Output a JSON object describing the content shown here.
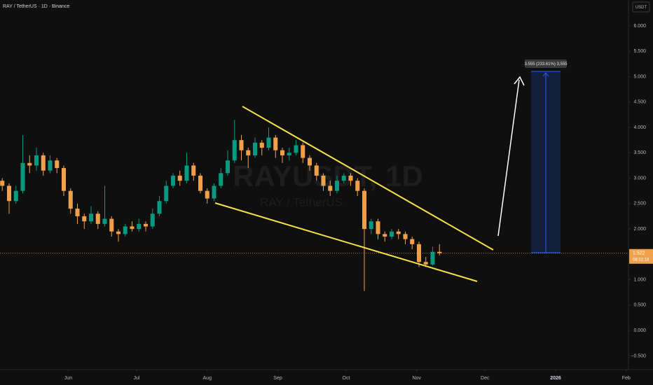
{
  "header": {
    "symbol": "RAY / TetherUS · 1D · Binance",
    "currency": "USDT"
  },
  "chart_data": {
    "type": "candlestick",
    "watermark": "RAYUSDT, 1D",
    "watermark_subtitle": "RAY / TetherUS",
    "up_color": "#089981",
    "down_color": "#f0a04b",
    "grid": false,
    "x": [
      -29,
      -26,
      -23,
      -20,
      -17,
      -14,
      -11,
      -8,
      -5,
      -2,
      1,
      4,
      7,
      10,
      13,
      16,
      19,
      22,
      25,
      28,
      31,
      34,
      37,
      40,
      43,
      46,
      49,
      52,
      55,
      58,
      61,
      64,
      67,
      70,
      73,
      76,
      79,
      82,
      85,
      88,
      91,
      94,
      97,
      100,
      103,
      106,
      109,
      112,
      115,
      118,
      121,
      124,
      127,
      130,
      133,
      136,
      139,
      142,
      145,
      148,
      151,
      154,
      157,
      160,
      163
    ],
    "open": [
      2.95,
      2.85,
      2.55,
      2.75,
      3.3,
      3.25,
      3.45,
      3.15,
      3.35,
      3.2,
      2.75,
      2.4,
      2.25,
      2.15,
      2.3,
      2.1,
      2.2,
      1.95,
      1.9,
      2.05,
      2.0,
      2.1,
      2.05,
      2.3,
      2.55,
      2.85,
      3.05,
      2.95,
      3.25,
      3.05,
      2.75,
      2.6,
      2.85,
      3.1,
      3.35,
      3.75,
      3.55,
      3.45,
      3.7,
      3.6,
      3.8,
      3.55,
      3.45,
      3.5,
      3.65,
      3.4,
      3.25,
      3.05,
      2.85,
      2.75,
      2.95,
      3.05,
      2.95,
      2.75,
      2.0,
      2.15,
      1.9,
      1.85,
      1.95,
      1.9,
      1.8,
      1.7,
      1.35,
      1.3,
      1.55
    ],
    "high": [
      3.0,
      2.9,
      2.85,
      3.85,
      3.45,
      3.6,
      3.5,
      3.45,
      3.4,
      3.25,
      2.8,
      2.5,
      2.3,
      2.45,
      2.35,
      2.85,
      2.25,
      2.0,
      2.1,
      2.15,
      2.2,
      2.15,
      2.4,
      2.65,
      2.95,
      3.1,
      3.15,
      3.5,
      3.3,
      3.1,
      2.8,
      2.9,
      3.2,
      3.55,
      4.15,
      3.85,
      3.6,
      3.8,
      3.75,
      4.0,
      3.85,
      3.6,
      3.6,
      3.75,
      3.7,
      3.45,
      3.3,
      3.1,
      2.95,
      3.05,
      3.1,
      3.1,
      3.0,
      2.8,
      2.2,
      2.2,
      1.95,
      2.0,
      2.0,
      1.95,
      1.85,
      1.75,
      1.45,
      1.65,
      1.7
    ],
    "low": [
      2.75,
      2.3,
      2.5,
      2.7,
      3.1,
      3.15,
      3.05,
      3.1,
      3.1,
      2.65,
      2.3,
      2.1,
      2.0,
      2.1,
      2.0,
      2.05,
      1.85,
      1.75,
      1.85,
      1.95,
      1.95,
      1.95,
      2.0,
      2.25,
      2.5,
      2.8,
      2.85,
      2.9,
      2.95,
      2.7,
      2.5,
      2.55,
      2.8,
      3.05,
      3.3,
      3.35,
      3.2,
      3.4,
      3.45,
      3.55,
      3.4,
      3.3,
      3.35,
      3.45,
      3.3,
      3.15,
      2.95,
      2.75,
      2.65,
      2.7,
      2.9,
      2.85,
      2.65,
      0.78,
      1.9,
      1.8,
      1.75,
      1.8,
      1.8,
      1.7,
      1.6,
      1.25,
      1.25,
      1.28,
      1.48
    ],
    "close": [
      2.85,
      2.55,
      2.75,
      3.3,
      3.25,
      3.45,
      3.15,
      3.35,
      3.2,
      2.75,
      2.4,
      2.25,
      2.15,
      2.3,
      2.1,
      2.2,
      1.95,
      1.9,
      2.05,
      2.0,
      2.1,
      2.05,
      2.3,
      2.55,
      2.85,
      3.05,
      2.95,
      3.25,
      3.05,
      2.75,
      2.6,
      2.85,
      3.1,
      3.35,
      3.75,
      3.55,
      3.45,
      3.7,
      3.6,
      3.8,
      3.55,
      3.45,
      3.5,
      3.65,
      3.4,
      3.25,
      3.05,
      2.85,
      2.75,
      2.95,
      3.05,
      2.95,
      2.75,
      2.0,
      2.15,
      1.9,
      1.85,
      1.95,
      1.9,
      1.8,
      1.7,
      1.35,
      1.3,
      1.55,
      1.522
    ],
    "countdown": "08:31:18",
    "annotation": "3.555 (233.61%) 3,555",
    "xlim": [
      -30,
      246
    ],
    "xticks": [
      {
        "value": 0,
        "label": "Jun"
      },
      {
        "value": 30,
        "label": "Jul"
      },
      {
        "value": 61,
        "label": "Aug"
      },
      {
        "value": 92,
        "label": "Sep"
      },
      {
        "value": 122,
        "label": "Oct"
      },
      {
        "value": 153,
        "label": "Nov"
      },
      {
        "value": 183,
        "label": "Dec"
      },
      {
        "value": 214,
        "label": "2026"
      },
      {
        "value": 245,
        "label": "Feb"
      }
    ],
    "ylim": [
      -0.77,
      6.51
    ],
    "yticks": [
      {
        "value": 6,
        "label": "6.000"
      },
      {
        "value": 5.5,
        "label": "5.500"
      },
      {
        "value": 5,
        "label": "5.000"
      },
      {
        "value": 4.5,
        "label": "4.500"
      },
      {
        "value": 4,
        "label": "4.000"
      },
      {
        "value": 3.5,
        "label": "3.500"
      },
      {
        "value": 3,
        "label": "3.000"
      },
      {
        "value": 2.5,
        "label": "2.500"
      },
      {
        "value": 2,
        "label": "2.000"
      },
      {
        "value": 1,
        "label": "1.000"
      },
      {
        "value": 0.5,
        "label": "0.500"
      },
      {
        "value": 0,
        "label": "0.000"
      },
      {
        "value": -0.5,
        "label": "−0.500"
      }
    ]
  }
}
